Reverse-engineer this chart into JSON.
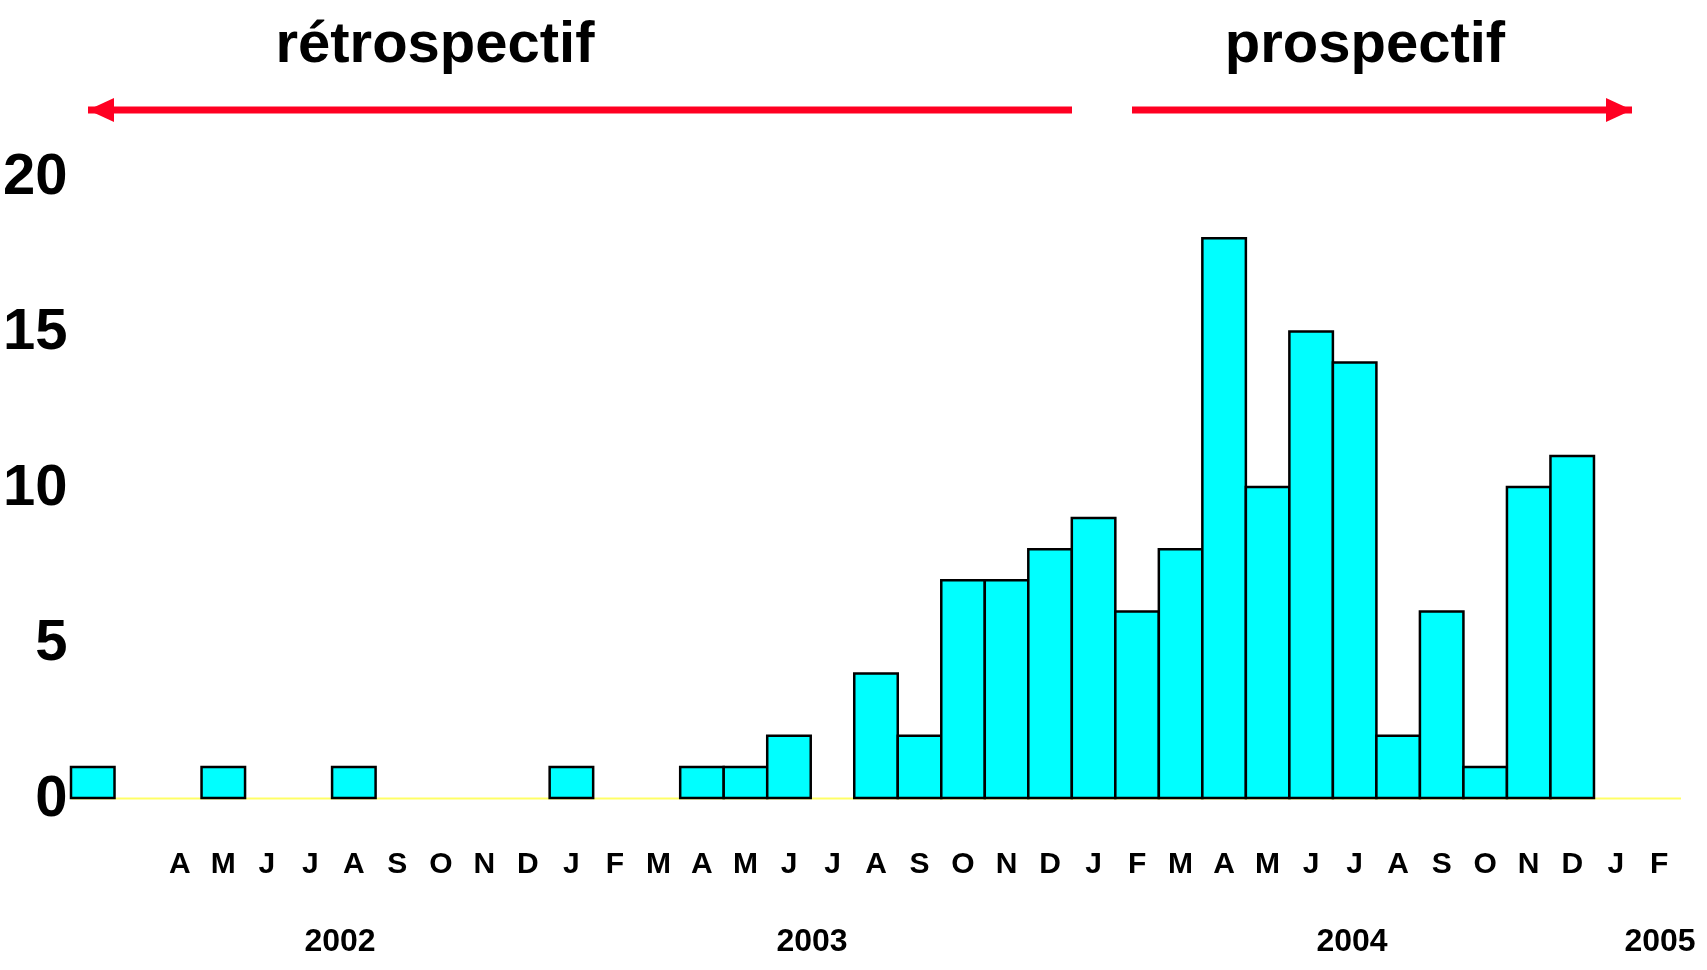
{
  "chart_data": {
    "type": "bar",
    "categories": [
      null,
      null,
      "A",
      "M",
      "J",
      "J",
      "A",
      "S",
      "O",
      "N",
      "D",
      "J",
      "F",
      "M",
      "A",
      "M",
      "J",
      "J",
      "A",
      "S",
      "O",
      "N",
      "D",
      "J",
      "F",
      "M",
      "A",
      "M",
      "J",
      "J",
      "A",
      "S",
      "O",
      "N",
      "D",
      "J",
      "F"
    ],
    "values": [
      1,
      0,
      0,
      1,
      0,
      0,
      1,
      0,
      0,
      0,
      0,
      1,
      0,
      0,
      1,
      1,
      2,
      0,
      4,
      2,
      7,
      7,
      8,
      9,
      6,
      8,
      18,
      10,
      15,
      14,
      2,
      6,
      1,
      10,
      11,
      null,
      null
    ],
    "color": "#00ffff",
    "ylim": [
      0,
      20
    ],
    "yticks": [
      0,
      5,
      10,
      15,
      20
    ],
    "annotations": [
      "rétrospectif",
      "prospectif",
      "2002",
      "2003",
      "2004",
      "2005"
    ]
  }
}
